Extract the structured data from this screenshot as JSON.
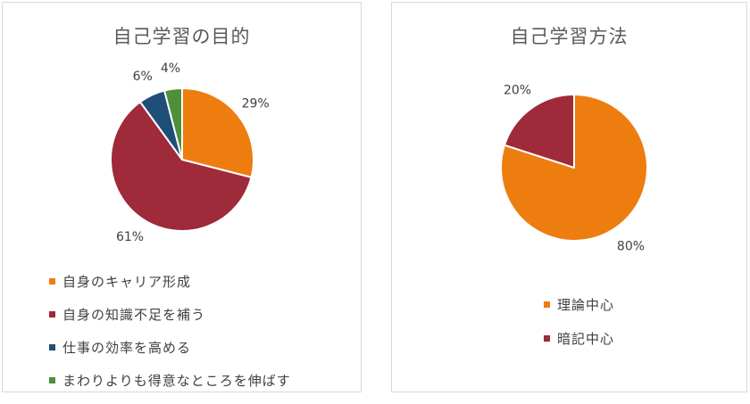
{
  "chart_data": [
    {
      "type": "pie",
      "title": "自己学習の目的",
      "categories": [
        "自身のキャリア形成",
        "自身の知識不足を補う",
        "仕事の効率を高める",
        "まわりよりも得意なところを伸ばす"
      ],
      "values": [
        29,
        61,
        6,
        4
      ],
      "data_labels": [
        "29%",
        "61%",
        "6%",
        "4%"
      ],
      "colors": [
        "#ED7D0F",
        "#9E2A3A",
        "#1F4E79",
        "#4E8F3A"
      ],
      "legend_position": "bottom",
      "start_angle_deg": 0,
      "direction": "clockwise"
    },
    {
      "type": "pie",
      "title": "自己学習方法",
      "categories": [
        "理論中心",
        "暗記中心"
      ],
      "values": [
        80,
        20
      ],
      "data_labels": [
        "80%",
        "20%"
      ],
      "colors": [
        "#ED7D0F",
        "#9E2A3A"
      ],
      "legend_position": "bottom",
      "start_angle_deg": 0,
      "direction": "clockwise"
    }
  ]
}
